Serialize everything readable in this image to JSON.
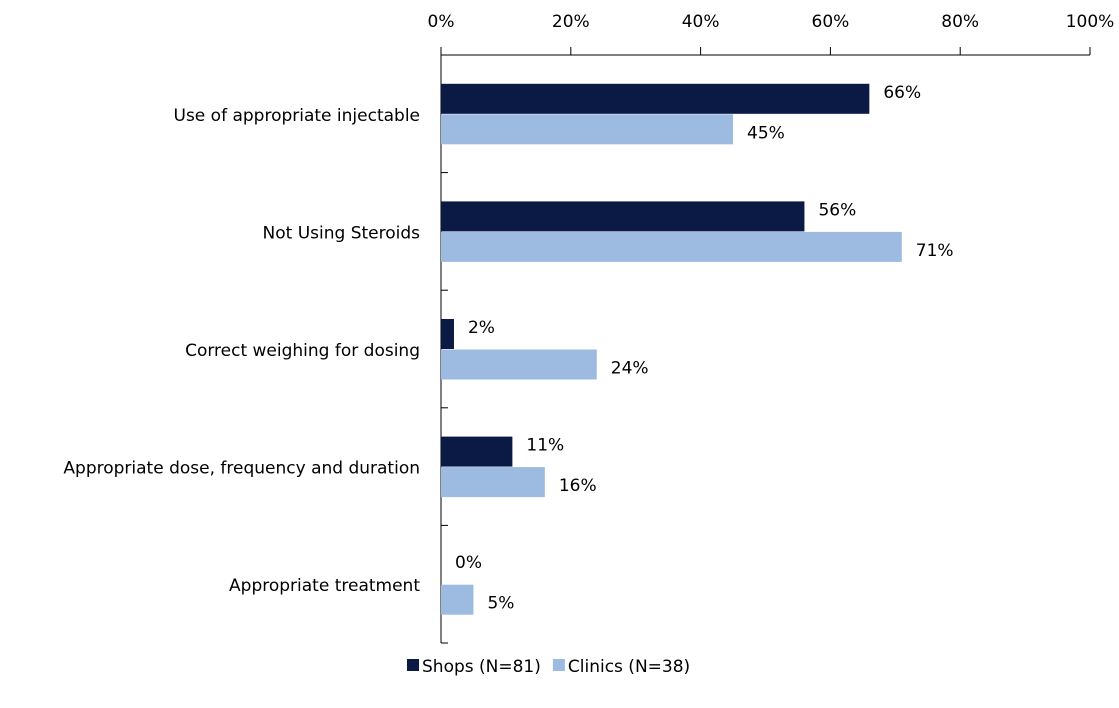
{
  "chart_data": {
    "type": "bar",
    "orientation": "horizontal",
    "categories": [
      "Use of appropriate injectable",
      "Not Using Steroids",
      "Correct weighing for dosing",
      "Appropriate dose, frequency and duration",
      "Appropriate treatment"
    ],
    "series": [
      {
        "name": "Shops (N=81)",
        "color": "#0a1a45",
        "values": [
          66,
          56,
          2,
          11,
          0
        ],
        "value_labels": [
          "66%",
          "56%",
          "2%",
          "11%",
          "0%"
        ]
      },
      {
        "name": "Clinics (N=38)",
        "color": "#9dbbe0",
        "values": [
          45,
          71,
          24,
          16,
          5
        ],
        "value_labels": [
          "45%",
          "71%",
          "24%",
          "16%",
          "5%"
        ]
      }
    ],
    "xlim": [
      0,
      100
    ],
    "xticks": [
      {
        "value": 0,
        "label": "0%"
      },
      {
        "value": 20,
        "label": "20%"
      },
      {
        "value": 40,
        "label": "40%"
      },
      {
        "value": 60,
        "label": "60%"
      },
      {
        "value": 80,
        "label": "80%"
      },
      {
        "value": 100,
        "label": "100%"
      }
    ],
    "legend": "bottom"
  }
}
